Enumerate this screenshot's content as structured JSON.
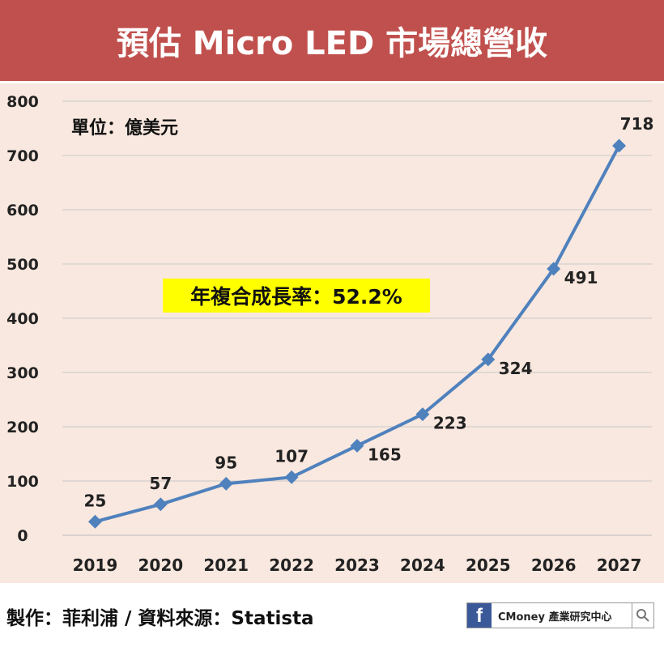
{
  "header": {
    "title": "預估 Micro LED 市場總營收"
  },
  "chart_data": {
    "type": "line",
    "title": "預估 Micro LED 市場總營收",
    "unit_label": "單位：億美元",
    "annotation": "年複合成長率：52.2%",
    "categories": [
      "2019",
      "2020",
      "2021",
      "2022",
      "2023",
      "2024",
      "2025",
      "2026",
      "2027"
    ],
    "values": [
      25,
      57,
      95,
      107,
      165,
      223,
      324,
      491,
      718
    ],
    "value_labels": [
      "25",
      "57",
      "95",
      "107",
      "165",
      "223",
      "324",
      "491",
      "718"
    ],
    "ylim": [
      0,
      800
    ],
    "yticks": [
      "0",
      "100",
      "200",
      "300",
      "400",
      "500",
      "600",
      "700",
      "800"
    ],
    "xlabel": "",
    "ylabel": "",
    "grid": true,
    "series_color": "#4f81bd"
  },
  "footer": {
    "credit": "製作：菲利浦 / 資料來源：Statista",
    "brand": {
      "icon_letter": "f",
      "text": "CMoney 產業研究中心"
    }
  }
}
